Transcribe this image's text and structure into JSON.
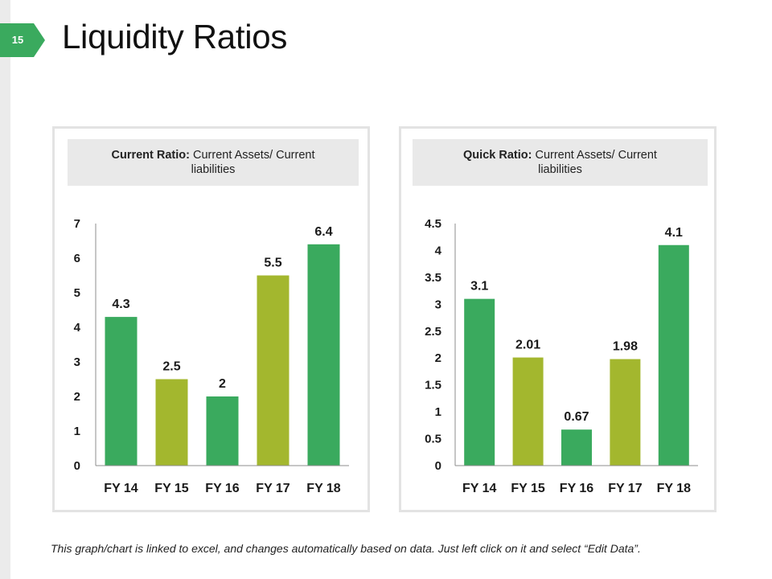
{
  "slide": {
    "number": "15",
    "title": "Liquidity Ratios",
    "footer": "This graph/chart is linked to excel, and changes automatically based on data. Just left click on it and select “Edit Data”."
  },
  "colors": {
    "accent_green": "#3aaa5e",
    "olive_green": "#a3b72e"
  },
  "panels": [
    {
      "header_bold": "Current Ratio:",
      "header_text": " Current Assets/ Current liabilities"
    },
    {
      "header_bold": "Quick Ratio:",
      "header_text": " Current Assets/ Current liabilities"
    }
  ],
  "chart_data": [
    {
      "type": "bar",
      "title": "Current Ratio: Current Assets/ Current liabilities",
      "categories": [
        "FY 14",
        "FY 15",
        "FY 16",
        "FY 17",
        "FY 18"
      ],
      "values": [
        4.3,
        2.5,
        2,
        5.5,
        6.4
      ],
      "labels": [
        "4.3",
        "2.5",
        "2",
        "5.5",
        "6.4"
      ],
      "bar_colors": [
        "#3aaa5e",
        "#a3b72e",
        "#3aaa5e",
        "#a3b72e",
        "#3aaa5e"
      ],
      "ylim": [
        0,
        7
      ],
      "yticks": [
        "0",
        "1",
        "2",
        "3",
        "4",
        "5",
        "6",
        "7"
      ],
      "xlabel": "",
      "ylabel": "",
      "grid": false
    },
    {
      "type": "bar",
      "title": "Quick Ratio: Current Assets/ Current liabilities",
      "categories": [
        "FY 14",
        "FY 15",
        "FY 16",
        "FY 17",
        "FY 18"
      ],
      "values": [
        3.1,
        2.01,
        0.67,
        1.98,
        4.1
      ],
      "labels": [
        "3.1",
        "2.01",
        "0.67",
        "1.98",
        "4.1"
      ],
      "bar_colors": [
        "#3aaa5e",
        "#a3b72e",
        "#3aaa5e",
        "#a3b72e",
        "#3aaa5e"
      ],
      "ylim": [
        0,
        4.5
      ],
      "yticks": [
        "0",
        "0.5",
        "1",
        "1.5",
        "2",
        "2.5",
        "3",
        "3.5",
        "4",
        "4.5"
      ],
      "xlabel": "",
      "ylabel": "",
      "grid": false
    }
  ]
}
